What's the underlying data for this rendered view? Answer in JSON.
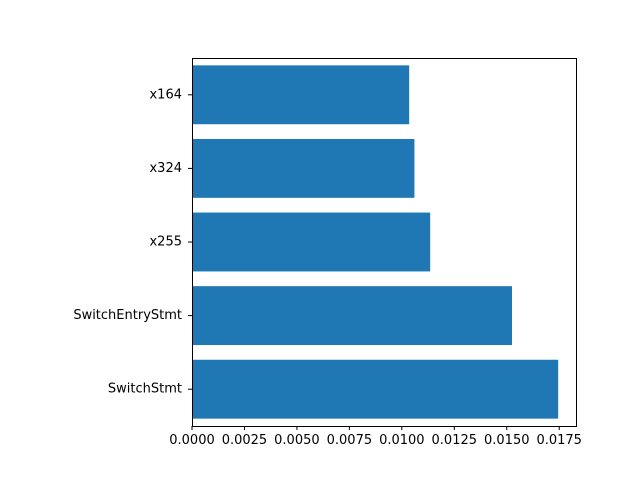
{
  "chart_data": {
    "type": "bar",
    "orientation": "horizontal",
    "categories": [
      "SwitchStmt",
      "SwitchEntryStmt",
      "x255",
      "x324",
      "x164"
    ],
    "values": [
      0.01745,
      0.01525,
      0.01135,
      0.0106,
      0.01035
    ],
    "xlim": [
      0,
      0.0183
    ],
    "xticks": [
      "0.0000",
      "0.0025",
      "0.0050",
      "0.0075",
      "0.0100",
      "0.0125",
      "0.0150",
      "0.0175"
    ],
    "xtick_values": [
      0,
      0.0025,
      0.005,
      0.0075,
      0.01,
      0.0125,
      0.015,
      0.0175
    ],
    "title": "",
    "xlabel": "",
    "ylabel": "",
    "grid": false,
    "colors": {
      "bar": "#1f77b4",
      "axis": "#000000"
    }
  }
}
